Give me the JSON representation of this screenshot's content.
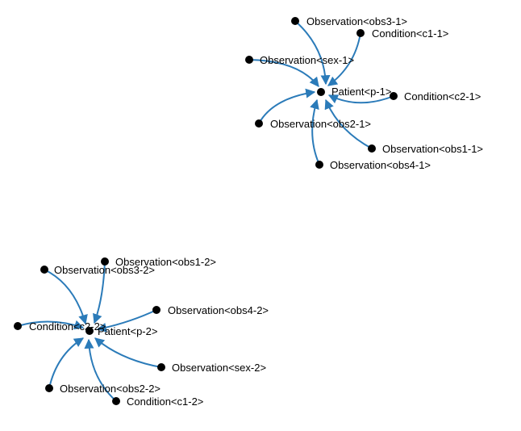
{
  "graph": {
    "edge_color": "#2b7bb9",
    "node_color": "#000000",
    "clusters": [
      {
        "center": {
          "id": "patient-p-1",
          "label": "Patient<p-1>"
        },
        "leaves": [
          {
            "id": "obs3-1",
            "label": "Observation<obs3-1>"
          },
          {
            "id": "c1-1",
            "label": "Condition<c1-1>"
          },
          {
            "id": "sex-1",
            "label": "Observation<sex-1>"
          },
          {
            "id": "c2-1",
            "label": "Condition<c2-1>"
          },
          {
            "id": "obs2-1",
            "label": "Observation<obs2-1>"
          },
          {
            "id": "obs1-1",
            "label": "Observation<obs1-1>"
          },
          {
            "id": "obs4-1",
            "label": "Observation<obs4-1>"
          }
        ]
      },
      {
        "center": {
          "id": "patient-p-2",
          "label": "Patient<p-2>"
        },
        "leaves": [
          {
            "id": "obs1-2",
            "label": "Observation<obs1-2>"
          },
          {
            "id": "obs3-2",
            "label": "Observation<obs3-2>"
          },
          {
            "id": "obs4-2",
            "label": "Observation<obs4-2>"
          },
          {
            "id": "c2-2",
            "label": "Condition<c2-2>"
          },
          {
            "id": "sex-2",
            "label": "Observation<sex-2>"
          },
          {
            "id": "obs2-2",
            "label": "Observation<obs2-2>"
          },
          {
            "id": "c1-2",
            "label": "Condition<c1-2>"
          }
        ]
      }
    ]
  }
}
